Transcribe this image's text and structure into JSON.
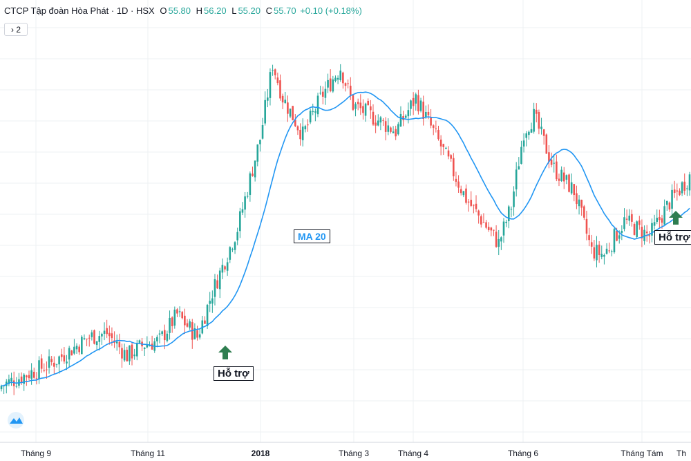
{
  "header": {
    "title": "CTCP Tập đoàn Hòa Phát · 1D · HSX",
    "open_label": "O",
    "open": "55.80",
    "high_label": "H",
    "high": "56.20",
    "low_label": "L",
    "low": "55.20",
    "close_label": "C",
    "close": "55.70",
    "change": "+0.10 (+0.18%)"
  },
  "toolbar": {
    "collapse_label": "› 2"
  },
  "annotations": {
    "ma_label": "MA 20",
    "support_1": "Hỗ trợ",
    "support_2": "Hỗ trợ"
  },
  "colors": {
    "up": "#26a69a",
    "down": "#ef5350",
    "ma": "#2196f3",
    "arrow": "#2e7d4f",
    "grid": "#eef0f3"
  },
  "chart_data": {
    "type": "candlestick",
    "series": [
      {
        "name": "MA 20"
      }
    ],
    "x_ticks": [
      "Tháng 9",
      "Tháng 11",
      "2018",
      "Tháng 3",
      "Tháng 4",
      "Tháng 6",
      "Tháng Tám",
      "Th"
    ],
    "price_anchors": [
      {
        "t": 0,
        "p": 20
      },
      {
        "t": 20,
        "p": 26
      },
      {
        "t": 35,
        "p": 33
      },
      {
        "t": 42,
        "p": 34
      },
      {
        "t": 50,
        "p": 28
      },
      {
        "t": 57,
        "p": 31
      },
      {
        "t": 63,
        "p": 32
      },
      {
        "t": 70,
        "p": 39
      },
      {
        "t": 78,
        "p": 33
      },
      {
        "t": 84,
        "p": 45
      },
      {
        "t": 94,
        "p": 62
      },
      {
        "t": 103,
        "p": 86
      },
      {
        "t": 108,
        "p": 106
      },
      {
        "t": 112,
        "p": 97
      },
      {
        "t": 120,
        "p": 87
      },
      {
        "t": 128,
        "p": 98
      },
      {
        "t": 135,
        "p": 105
      },
      {
        "t": 140,
        "p": 95
      },
      {
        "t": 150,
        "p": 91
      },
      {
        "t": 157,
        "p": 88
      },
      {
        "t": 165,
        "p": 97
      },
      {
        "t": 175,
        "p": 84
      },
      {
        "t": 185,
        "p": 70
      },
      {
        "t": 198,
        "p": 58
      },
      {
        "t": 203,
        "p": 68
      },
      {
        "t": 208,
        "p": 88
      },
      {
        "t": 212,
        "p": 92
      },
      {
        "t": 220,
        "p": 78
      },
      {
        "t": 228,
        "p": 72
      },
      {
        "t": 235,
        "p": 56
      },
      {
        "t": 240,
        "p": 55
      },
      {
        "t": 248,
        "p": 64
      },
      {
        "t": 258,
        "p": 60
      },
      {
        "t": 266,
        "p": 69
      },
      {
        "t": 274,
        "p": 76
      }
    ],
    "candle_count": 275,
    "ma_period": 20
  }
}
